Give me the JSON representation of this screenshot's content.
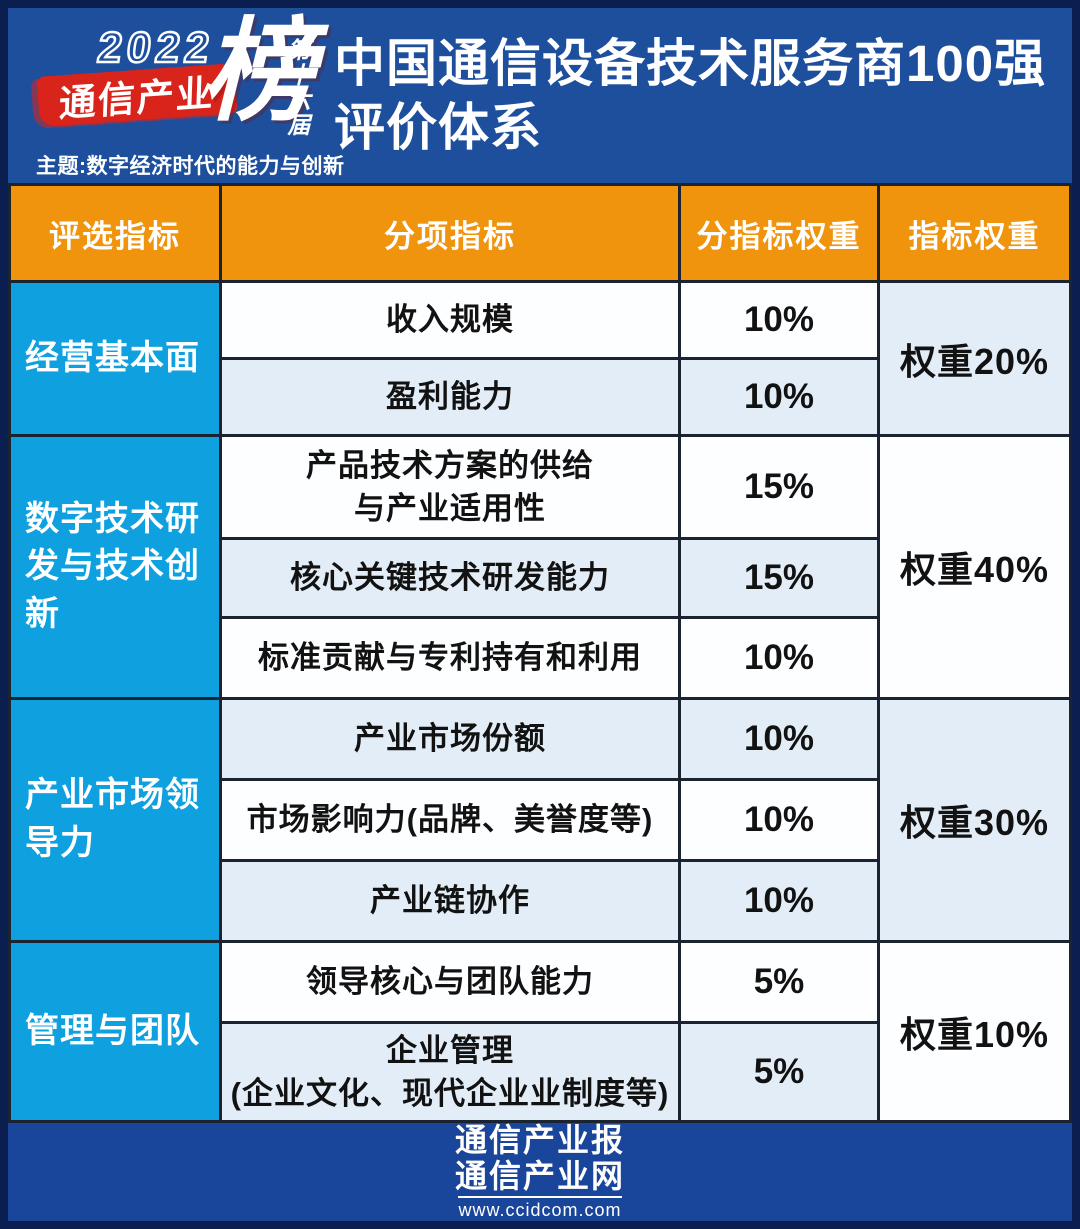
{
  "colors": {
    "outer_border": "#0A1E4F",
    "header_bg": "#1D4F9D",
    "table_header_orange": "#F0930D",
    "category_blue": "#0FA0E0",
    "row_pale_blue": "#E3EDF7",
    "row_white": "#FDFEFF",
    "logo_red": "#D9241C",
    "footer_bg": "#19459A",
    "grid_line": "#1B2230"
  },
  "logo": {
    "year": "2022",
    "banner": "通信产业",
    "bang": "榜",
    "edition": "第十六届",
    "theme": "主题:数字经济时代的能力与创新"
  },
  "title": {
    "line1": "中国通信设备技术服务商100强",
    "line2": "评价体系"
  },
  "table": {
    "headers": [
      "评选指标",
      "分项指标",
      "分指标权重",
      "指标权重"
    ],
    "groups": [
      {
        "category": "经营基本面",
        "group_weight": "权重20%",
        "rows": [
          {
            "name": "收入规模",
            "weight": "10%"
          },
          {
            "name": "盈利能力",
            "weight": "10%"
          }
        ]
      },
      {
        "category": "数字技术研发与技术创新",
        "group_weight": "权重40%",
        "rows": [
          {
            "name": "产品技术方案的供给\n与产业适用性",
            "weight": "15%"
          },
          {
            "name": "核心关键技术研发能力",
            "weight": "15%"
          },
          {
            "name": "标准贡献与专利持有和利用",
            "weight": "10%"
          }
        ]
      },
      {
        "category": "产业市场领导力",
        "group_weight": "权重30%",
        "rows": [
          {
            "name": "产业市场份额",
            "weight": "10%"
          },
          {
            "name": "市场影响力(品牌、美誉度等)",
            "weight": "10%"
          },
          {
            "name": "产业链协作",
            "weight": "10%"
          }
        ]
      },
      {
        "category": "管理与团队",
        "group_weight": "权重10%",
        "rows": [
          {
            "name": "领导核心与团队能力",
            "weight": "5%"
          },
          {
            "name": "企业管理\n(企业文化、现代企业业制度等)",
            "weight": "5%"
          }
        ]
      }
    ]
  },
  "footer": {
    "line1": "通信产业报",
    "line2": "通信产业网",
    "url": "www.ccidcom.com"
  }
}
